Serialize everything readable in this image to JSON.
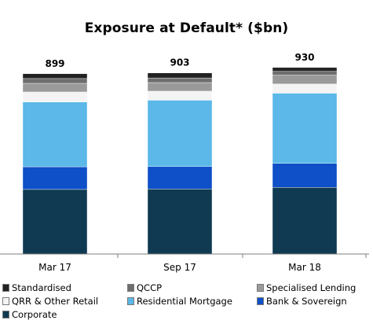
{
  "chart_data": {
    "type": "stacked-bar",
    "title": "Exposure at Default* ($bn)",
    "categories": [
      "Mar 17",
      "Sep 17",
      "Mar 18"
    ],
    "totals": [
      899,
      903,
      930
    ],
    "series": [
      {
        "name": "Corporate",
        "color": "#0f3a52",
        "values": [
          322,
          324,
          332
        ]
      },
      {
        "name": "Bank & Sovereign",
        "color": "#0f4fc8",
        "values": [
          113,
          112,
          120
        ]
      },
      {
        "name": "Residential Mortgage",
        "color": "#5bb8e8",
        "values": [
          323,
          331,
          350
        ]
      },
      {
        "name": "QRR & Other Retail",
        "color": "#f4f4f4",
        "values": [
          50,
          45,
          46
        ]
      },
      {
        "name": "Specialised Lending",
        "color": "#9a9a9a",
        "values": [
          43,
          43,
          44
        ]
      },
      {
        "name": "QCCP",
        "color": "#6e6e6e",
        "values": [
          24,
          23,
          19
        ]
      },
      {
        "name": "Standardised",
        "color": "#222222",
        "values": [
          24,
          25,
          19
        ]
      }
    ],
    "legend_order": [
      "Standardised",
      "QCCP",
      "Specialised Lending",
      "QRR & Other Retail",
      "Residential Mortgage",
      "Bank & Sovereign",
      "Corporate"
    ],
    "legend_position": "bottom",
    "grid": false
  }
}
